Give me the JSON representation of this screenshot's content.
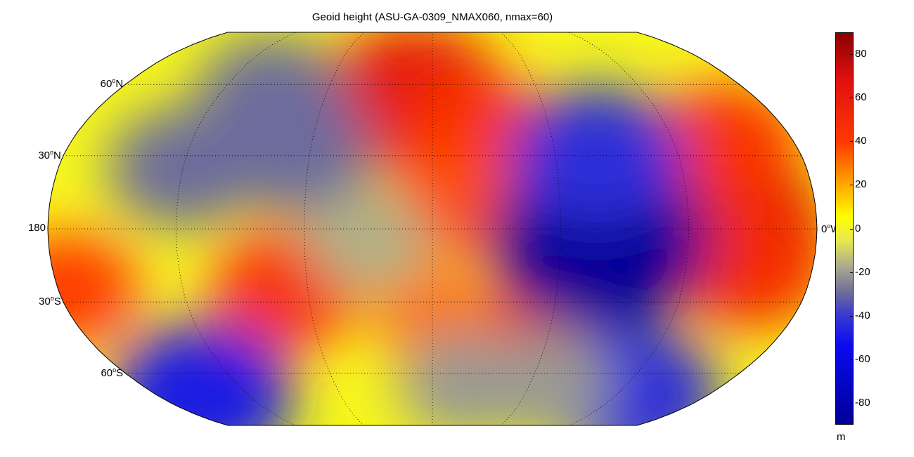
{
  "title": "Geoid height (ASU-GA-0309_NMAX060, nmax=60)",
  "map": {
    "projection": "Robinson",
    "central_meridian_deg": 0,
    "latitude_labels": [
      {
        "deg": "60",
        "hemi": "N",
        "lat": 60
      },
      {
        "deg": "30",
        "hemi": "N",
        "lat": 30
      },
      {
        "deg": "",
        "hemi": "180",
        "lat": 0
      },
      {
        "deg": "30",
        "hemi": "S",
        "lat": -30
      },
      {
        "deg": "60",
        "hemi": "S",
        "lat": -60
      }
    ],
    "equator_right_label": "0",
    "equator_right_suffix": "W",
    "graticule": "dotted",
    "background_level_m": -10,
    "anomalies": [
      {
        "lon": -10,
        "lat": 55,
        "value": 65
      },
      {
        "lon": 20,
        "lat": 40,
        "value": 45
      },
      {
        "lon": 10,
        "lat": 10,
        "value": 35
      },
      {
        "lon": 140,
        "lat": 0,
        "value": 70
      },
      {
        "lon": 150,
        "lat": -15,
        "value": 50
      },
      {
        "lon": 145,
        "lat": 35,
        "value": 45
      },
      {
        "lon": 45,
        "lat": -50,
        "value": 45
      },
      {
        "lon": 0,
        "lat": -35,
        "value": 25
      },
      {
        "lon": -70,
        "lat": -25,
        "value": 45
      },
      {
        "lon": -175,
        "lat": -25,
        "value": 40
      },
      {
        "lon": 78,
        "lat": -5,
        "value": -90
      },
      {
        "lon": 80,
        "lat": 30,
        "value": -60
      },
      {
        "lon": -65,
        "lat": 30,
        "value": -45
      },
      {
        "lon": -90,
        "lat": 55,
        "value": -45
      },
      {
        "lon": -120,
        "lat": 25,
        "value": -45
      },
      {
        "lon": -150,
        "lat": -70,
        "value": -65
      },
      {
        "lon": 130,
        "lat": -70,
        "value": -60
      },
      {
        "lon": 70,
        "lat": -65,
        "value": -35
      },
      {
        "lon": 20,
        "lat": -65,
        "value": -35
      },
      {
        "lon": -30,
        "lat": -5,
        "value": -30
      }
    ]
  },
  "colorbar": {
    "min": -90,
    "max": 90,
    "ticks": [
      80,
      60,
      40,
      20,
      0,
      -20,
      -40,
      -60,
      -80
    ],
    "unit": "m"
  }
}
